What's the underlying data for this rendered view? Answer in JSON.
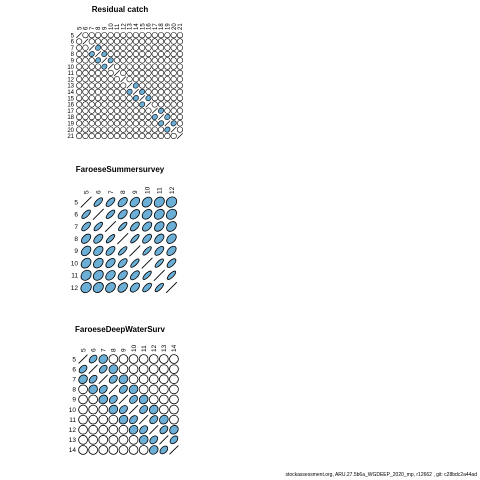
{
  "chart_data": [
    {
      "type": "correlation-ellipse",
      "title": "Residual catch",
      "labels": [
        "5",
        "6",
        "7",
        "8",
        "9",
        "10",
        "11",
        "12",
        "13",
        "14",
        "15",
        "16",
        "17",
        "18",
        "19",
        "20",
        "21"
      ],
      "values": [
        [
          1,
          0,
          0,
          0,
          0,
          0,
          0,
          0,
          0,
          0,
          0,
          0,
          0,
          0,
          0,
          0,
          0
        ],
        [
          0,
          1,
          0,
          0,
          0,
          0,
          0,
          0,
          0,
          0,
          0,
          0,
          0,
          0,
          0,
          0,
          0
        ],
        [
          0,
          0,
          1,
          0.25,
          0,
          0,
          0,
          0,
          0,
          0,
          0,
          0,
          0,
          0,
          0,
          0,
          0
        ],
        [
          0,
          0,
          0.25,
          1,
          0.25,
          0,
          0,
          0,
          0,
          0,
          0,
          0,
          0,
          0,
          0,
          0,
          0
        ],
        [
          0,
          0,
          0,
          0.25,
          1,
          0.25,
          0,
          0,
          0,
          0,
          0,
          0,
          0,
          0,
          0,
          0,
          0
        ],
        [
          0,
          0,
          0,
          0,
          0.25,
          1,
          0,
          0,
          0,
          0,
          0,
          0,
          0,
          0,
          0,
          0,
          0
        ],
        [
          0,
          0,
          0,
          0,
          0,
          0,
          1,
          0,
          0,
          0,
          0,
          0,
          0,
          0,
          0,
          0,
          0
        ],
        [
          0,
          0,
          0,
          0,
          0,
          0,
          0,
          1,
          0,
          0,
          0,
          0,
          0,
          0,
          0,
          0,
          0
        ],
        [
          0,
          0,
          0,
          0,
          0,
          0,
          0,
          0,
          1,
          0.2,
          0,
          0,
          0,
          0,
          0,
          0,
          0
        ],
        [
          0,
          0,
          0,
          0,
          0,
          0,
          0,
          0,
          0.2,
          1,
          0.2,
          0,
          0,
          0,
          0,
          0,
          0
        ],
        [
          0,
          0,
          0,
          0,
          0,
          0,
          0,
          0,
          0,
          0.2,
          1,
          0.2,
          0,
          0,
          0,
          0,
          0
        ],
        [
          0,
          0,
          0,
          0,
          0,
          0,
          0,
          0,
          0,
          0,
          0.2,
          1,
          0,
          0,
          0,
          0,
          0
        ],
        [
          0,
          0,
          0,
          0,
          0,
          0,
          0,
          0,
          0,
          0,
          0,
          0,
          1,
          0.2,
          0,
          0,
          0
        ],
        [
          0,
          0,
          0,
          0,
          0,
          0,
          0,
          0,
          0,
          0,
          0,
          0,
          0.2,
          1,
          0.2,
          0,
          0
        ],
        [
          0,
          0,
          0,
          0,
          0,
          0,
          0,
          0,
          0,
          0,
          0,
          0,
          0,
          0.2,
          1,
          0.2,
          0
        ],
        [
          0,
          0,
          0,
          0,
          0,
          0,
          0,
          0,
          0,
          0,
          0,
          0,
          0,
          0,
          0.2,
          1,
          0
        ],
        [
          0,
          0,
          0,
          0,
          0,
          0,
          0,
          0,
          0,
          0,
          0,
          0,
          0,
          0,
          0,
          0,
          1
        ]
      ]
    },
    {
      "type": "correlation-ellipse",
      "title": "FaroeseSummersurvey",
      "labels": [
        "5",
        "6",
        "7",
        "8",
        "9",
        "10",
        "11",
        "12"
      ],
      "values": [
        [
          1,
          0.8,
          0.75,
          0.6,
          0.5,
          0.4,
          0.3,
          0.2
        ],
        [
          0.8,
          1,
          0.82,
          0.65,
          0.55,
          0.45,
          0.35,
          0.3
        ],
        [
          0.75,
          0.82,
          1,
          0.85,
          0.7,
          0.6,
          0.5,
          0.4
        ],
        [
          0.6,
          0.65,
          0.85,
          1,
          0.85,
          0.7,
          0.6,
          0.5
        ],
        [
          0.5,
          0.55,
          0.7,
          0.85,
          1,
          0.85,
          0.7,
          0.6
        ],
        [
          0.4,
          0.45,
          0.6,
          0.7,
          0.85,
          1,
          0.85,
          0.75
        ],
        [
          0.3,
          0.35,
          0.5,
          0.6,
          0.7,
          0.85,
          1,
          0.85
        ],
        [
          0.2,
          0.3,
          0.4,
          0.5,
          0.6,
          0.75,
          0.85,
          1
        ]
      ]
    },
    {
      "type": "correlation-ellipse",
      "title": "FaroeseDeepWaterSurv",
      "labels": [
        "5",
        "6",
        "7",
        "8",
        "9",
        "10",
        "11",
        "12",
        "13",
        "14"
      ],
      "values": [
        [
          1,
          0.55,
          0.2,
          0,
          0,
          0,
          0,
          0,
          0,
          0
        ],
        [
          0.55,
          1,
          0.55,
          0.15,
          0,
          0,
          0,
          0,
          0,
          0
        ],
        [
          0.2,
          0.55,
          1,
          0.45,
          0.15,
          0,
          0,
          0,
          0,
          0
        ],
        [
          0,
          0.15,
          0.45,
          1,
          0.45,
          0.15,
          0,
          0,
          0,
          0
        ],
        [
          0,
          0,
          0.15,
          0.45,
          1,
          0.45,
          0.15,
          0,
          0,
          0
        ],
        [
          0,
          0,
          0,
          0.15,
          0.45,
          1,
          0.45,
          0.15,
          0,
          0
        ],
        [
          0,
          0,
          0,
          0,
          0.15,
          0.45,
          1,
          0.45,
          0.15,
          0
        ],
        [
          0,
          0,
          0,
          0,
          0,
          0.15,
          0.45,
          1,
          0.5,
          0.2
        ],
        [
          0,
          0,
          0,
          0,
          0,
          0,
          0.15,
          0.5,
          1,
          0.55
        ],
        [
          0,
          0,
          0,
          0,
          0,
          0,
          0,
          0.2,
          0.55,
          1
        ]
      ]
    }
  ],
  "footer": "stockassessment.org, ARU.27.5b6a_WGDEEP_2020_mp, r12662 , git: c28bdc2a44ad",
  "colors": {
    "fill": "#6baed6",
    "stroke": "#000000",
    "background": "#ffffff"
  }
}
